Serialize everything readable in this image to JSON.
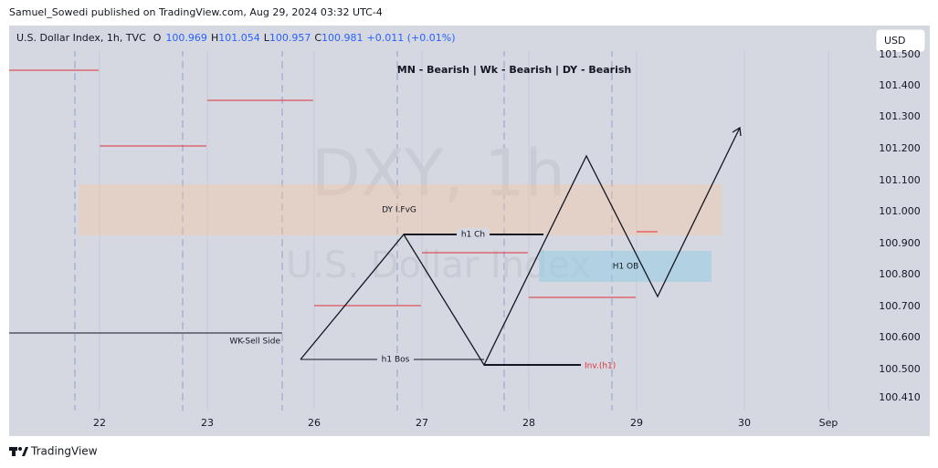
{
  "header": "Samuel_Sowedi published on TradingView.com, Aug 29, 2024 03:32 UTC-4",
  "legend": {
    "symbol": "U.S. Dollar Index, 1h, TVC",
    "o_label": "O",
    "o": "100.969",
    "h_label": "H",
    "h": "101.054",
    "l_label": "L",
    "l": "100.957",
    "c_label": "C",
    "c": "100.981",
    "change": "+0.011 (+0.01%)"
  },
  "currency": "USD",
  "watermark": {
    "symbol": "DXY, 1h",
    "name": "U.S. Dollar Index"
  },
  "price_axis": [
    "101.500",
    "101.400",
    "101.300",
    "101.200",
    "101.100",
    "101.000",
    "100.900",
    "100.800",
    "100.700",
    "100.600",
    "100.500",
    "100.410"
  ],
  "time_axis": [
    "22",
    "23",
    "26",
    "27",
    "28",
    "29",
    "30",
    "Sep"
  ],
  "annotations": {
    "bias": "MN - Bearish | Wk - Bearish | DY - Bearish",
    "fvg": "DY I.FvG",
    "h1_ch": "h1 Ch",
    "h1_ob": "H1 OB",
    "wk_sell_side": "WK-Sell Side",
    "h1_bos": "h1 Bos",
    "inv": "Inv.(h1)"
  },
  "footer": "TradingView"
}
